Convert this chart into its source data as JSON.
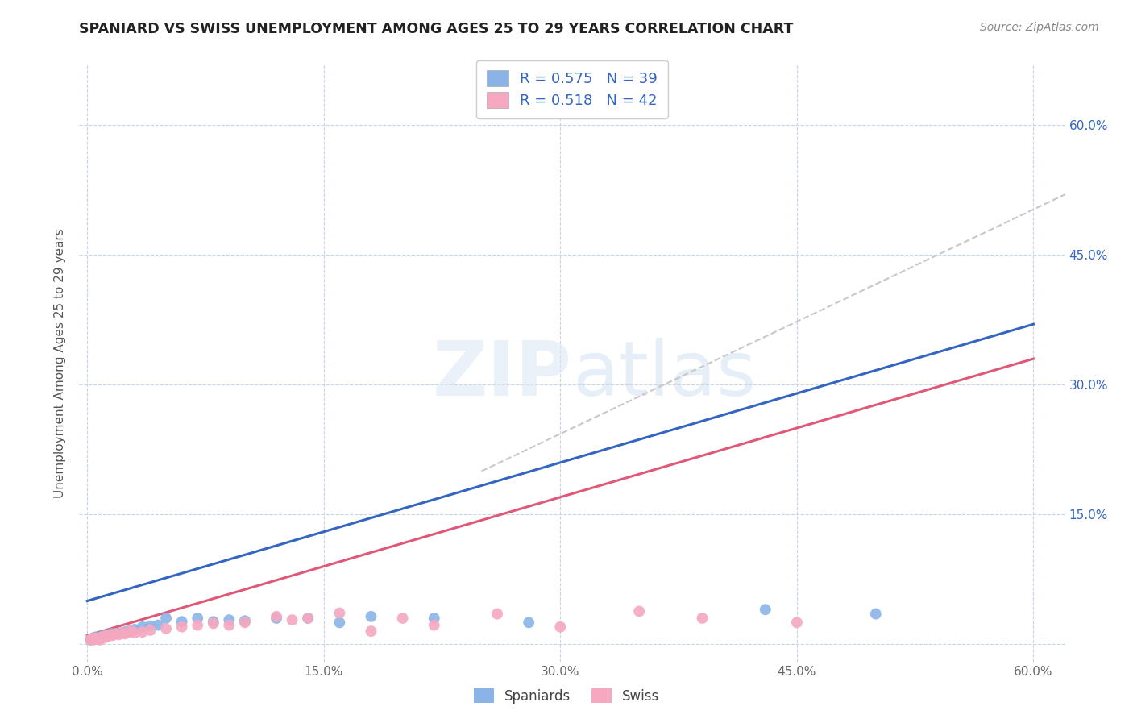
{
  "title": "SPANIARD VS SWISS UNEMPLOYMENT AMONG AGES 25 TO 29 YEARS CORRELATION CHART",
  "source": "Source: ZipAtlas.com",
  "ylabel": "Unemployment Among Ages 25 to 29 years",
  "xlim": [
    -0.005,
    0.62
  ],
  "ylim": [
    -0.02,
    0.67
  ],
  "xticks": [
    0.0,
    0.15,
    0.3,
    0.45,
    0.6
  ],
  "xtick_labels": [
    "0.0%",
    "15.0%",
    "30.0%",
    "45.0%",
    "60.0%"
  ],
  "yticks": [
    0.0,
    0.15,
    0.3,
    0.45,
    0.6
  ],
  "ytick_labels": [
    "",
    "",
    "",
    "",
    ""
  ],
  "right_ytick_labels": [
    "15.0%",
    "30.0%",
    "45.0%",
    "60.0%"
  ],
  "right_yticks": [
    0.15,
    0.3,
    0.45,
    0.6
  ],
  "spaniard_color": "#8ab4e8",
  "swiss_color": "#f5a8c0",
  "spaniard_line_color": "#3465c0",
  "swiss_line_color": "#e05878",
  "dash_line_color": "#c8c8c8",
  "spaniard_R": 0.575,
  "spaniard_N": 39,
  "swiss_R": 0.518,
  "swiss_N": 42,
  "legend_text_color": "#3465c0",
  "background_color": "#ffffff",
  "grid_color": "#c8d4e8",
  "spaniard_x": [
    0.002,
    0.003,
    0.004,
    0.005,
    0.006,
    0.007,
    0.008,
    0.009,
    0.01,
    0.011,
    0.012,
    0.013,
    0.014,
    0.015,
    0.016,
    0.018,
    0.02,
    0.022,
    0.024,
    0.026,
    0.028,
    0.03,
    0.035,
    0.04,
    0.045,
    0.05,
    0.06,
    0.07,
    0.08,
    0.09,
    0.1,
    0.12,
    0.14,
    0.16,
    0.18,
    0.22,
    0.28,
    0.43,
    0.5
  ],
  "spaniard_y": [
    0.005,
    0.006,
    0.007,
    0.008,
    0.006,
    0.007,
    0.008,
    0.009,
    0.008,
    0.01,
    0.01,
    0.01,
    0.011,
    0.012,
    0.012,
    0.012,
    0.013,
    0.013,
    0.014,
    0.015,
    0.015,
    0.017,
    0.02,
    0.021,
    0.022,
    0.03,
    0.026,
    0.03,
    0.026,
    0.028,
    0.027,
    0.03,
    0.03,
    0.025,
    0.032,
    0.03,
    0.025,
    0.04,
    0.035
  ],
  "swiss_x": [
    0.002,
    0.003,
    0.004,
    0.005,
    0.006,
    0.007,
    0.008,
    0.009,
    0.01,
    0.011,
    0.012,
    0.013,
    0.014,
    0.015,
    0.016,
    0.018,
    0.02,
    0.022,
    0.024,
    0.026,
    0.028,
    0.03,
    0.035,
    0.04,
    0.05,
    0.06,
    0.07,
    0.08,
    0.09,
    0.1,
    0.12,
    0.13,
    0.14,
    0.16,
    0.18,
    0.2,
    0.22,
    0.26,
    0.3,
    0.35,
    0.39,
    0.45
  ],
  "swiss_y": [
    0.005,
    0.006,
    0.005,
    0.007,
    0.006,
    0.007,
    0.005,
    0.008,
    0.007,
    0.009,
    0.008,
    0.01,
    0.01,
    0.011,
    0.01,
    0.012,
    0.011,
    0.013,
    0.012,
    0.014,
    0.015,
    0.013,
    0.014,
    0.016,
    0.018,
    0.02,
    0.022,
    0.024,
    0.022,
    0.025,
    0.032,
    0.028,
    0.03,
    0.036,
    0.015,
    0.03,
    0.022,
    0.035,
    0.02,
    0.038,
    0.03,
    0.025
  ]
}
